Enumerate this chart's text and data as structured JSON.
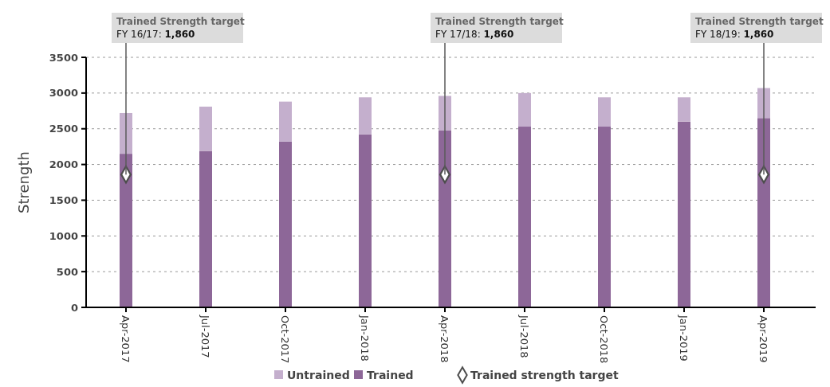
{
  "chart_data": {
    "type": "bar",
    "stacked": true,
    "ylabel": "Strength",
    "categories": [
      "Apr-2017",
      "Jul-2017",
      "Oct-2017",
      "Jan-2018",
      "Apr-2018",
      "Jul-2018",
      "Oct-2018",
      "Jan-2019",
      "Apr-2019"
    ],
    "series": [
      {
        "name": "Trained",
        "color": "#8d6798",
        "values": [
          2150,
          2190,
          2320,
          2420,
          2480,
          2530,
          2530,
          2600,
          2650
        ]
      },
      {
        "name": "Untrained",
        "color": "#c4afcd",
        "values": [
          570,
          620,
          560,
          520,
          480,
          470,
          410,
          340,
          420
        ]
      },
      {
        "name": "Trained strength target",
        "type": "scatter",
        "marker": "diamond",
        "color": "#4d4d4d",
        "x": [
          "Apr-2017",
          "Apr-2018",
          "Apr-2019"
        ],
        "values": [
          1860,
          1860,
          1860
        ]
      }
    ],
    "ylim": [
      0,
      3500
    ],
    "yticks": [
      0,
      500,
      1000,
      1500,
      2000,
      2500,
      3000,
      3500
    ],
    "grid": "y",
    "legend": "bottom",
    "annotations": [
      {
        "text": "Trained Strength target\nFY 16/17: 1,860",
        "x": "Apr-2017",
        "y": 1860
      },
      {
        "text": "Trained Strength target\nFY 17/18: 1,860",
        "x": "Apr-2018",
        "y": 1860
      },
      {
        "text": "Trained Strength target\nFY 18/19: 1,860",
        "x": "Apr-2019",
        "y": 1860
      }
    ]
  }
}
